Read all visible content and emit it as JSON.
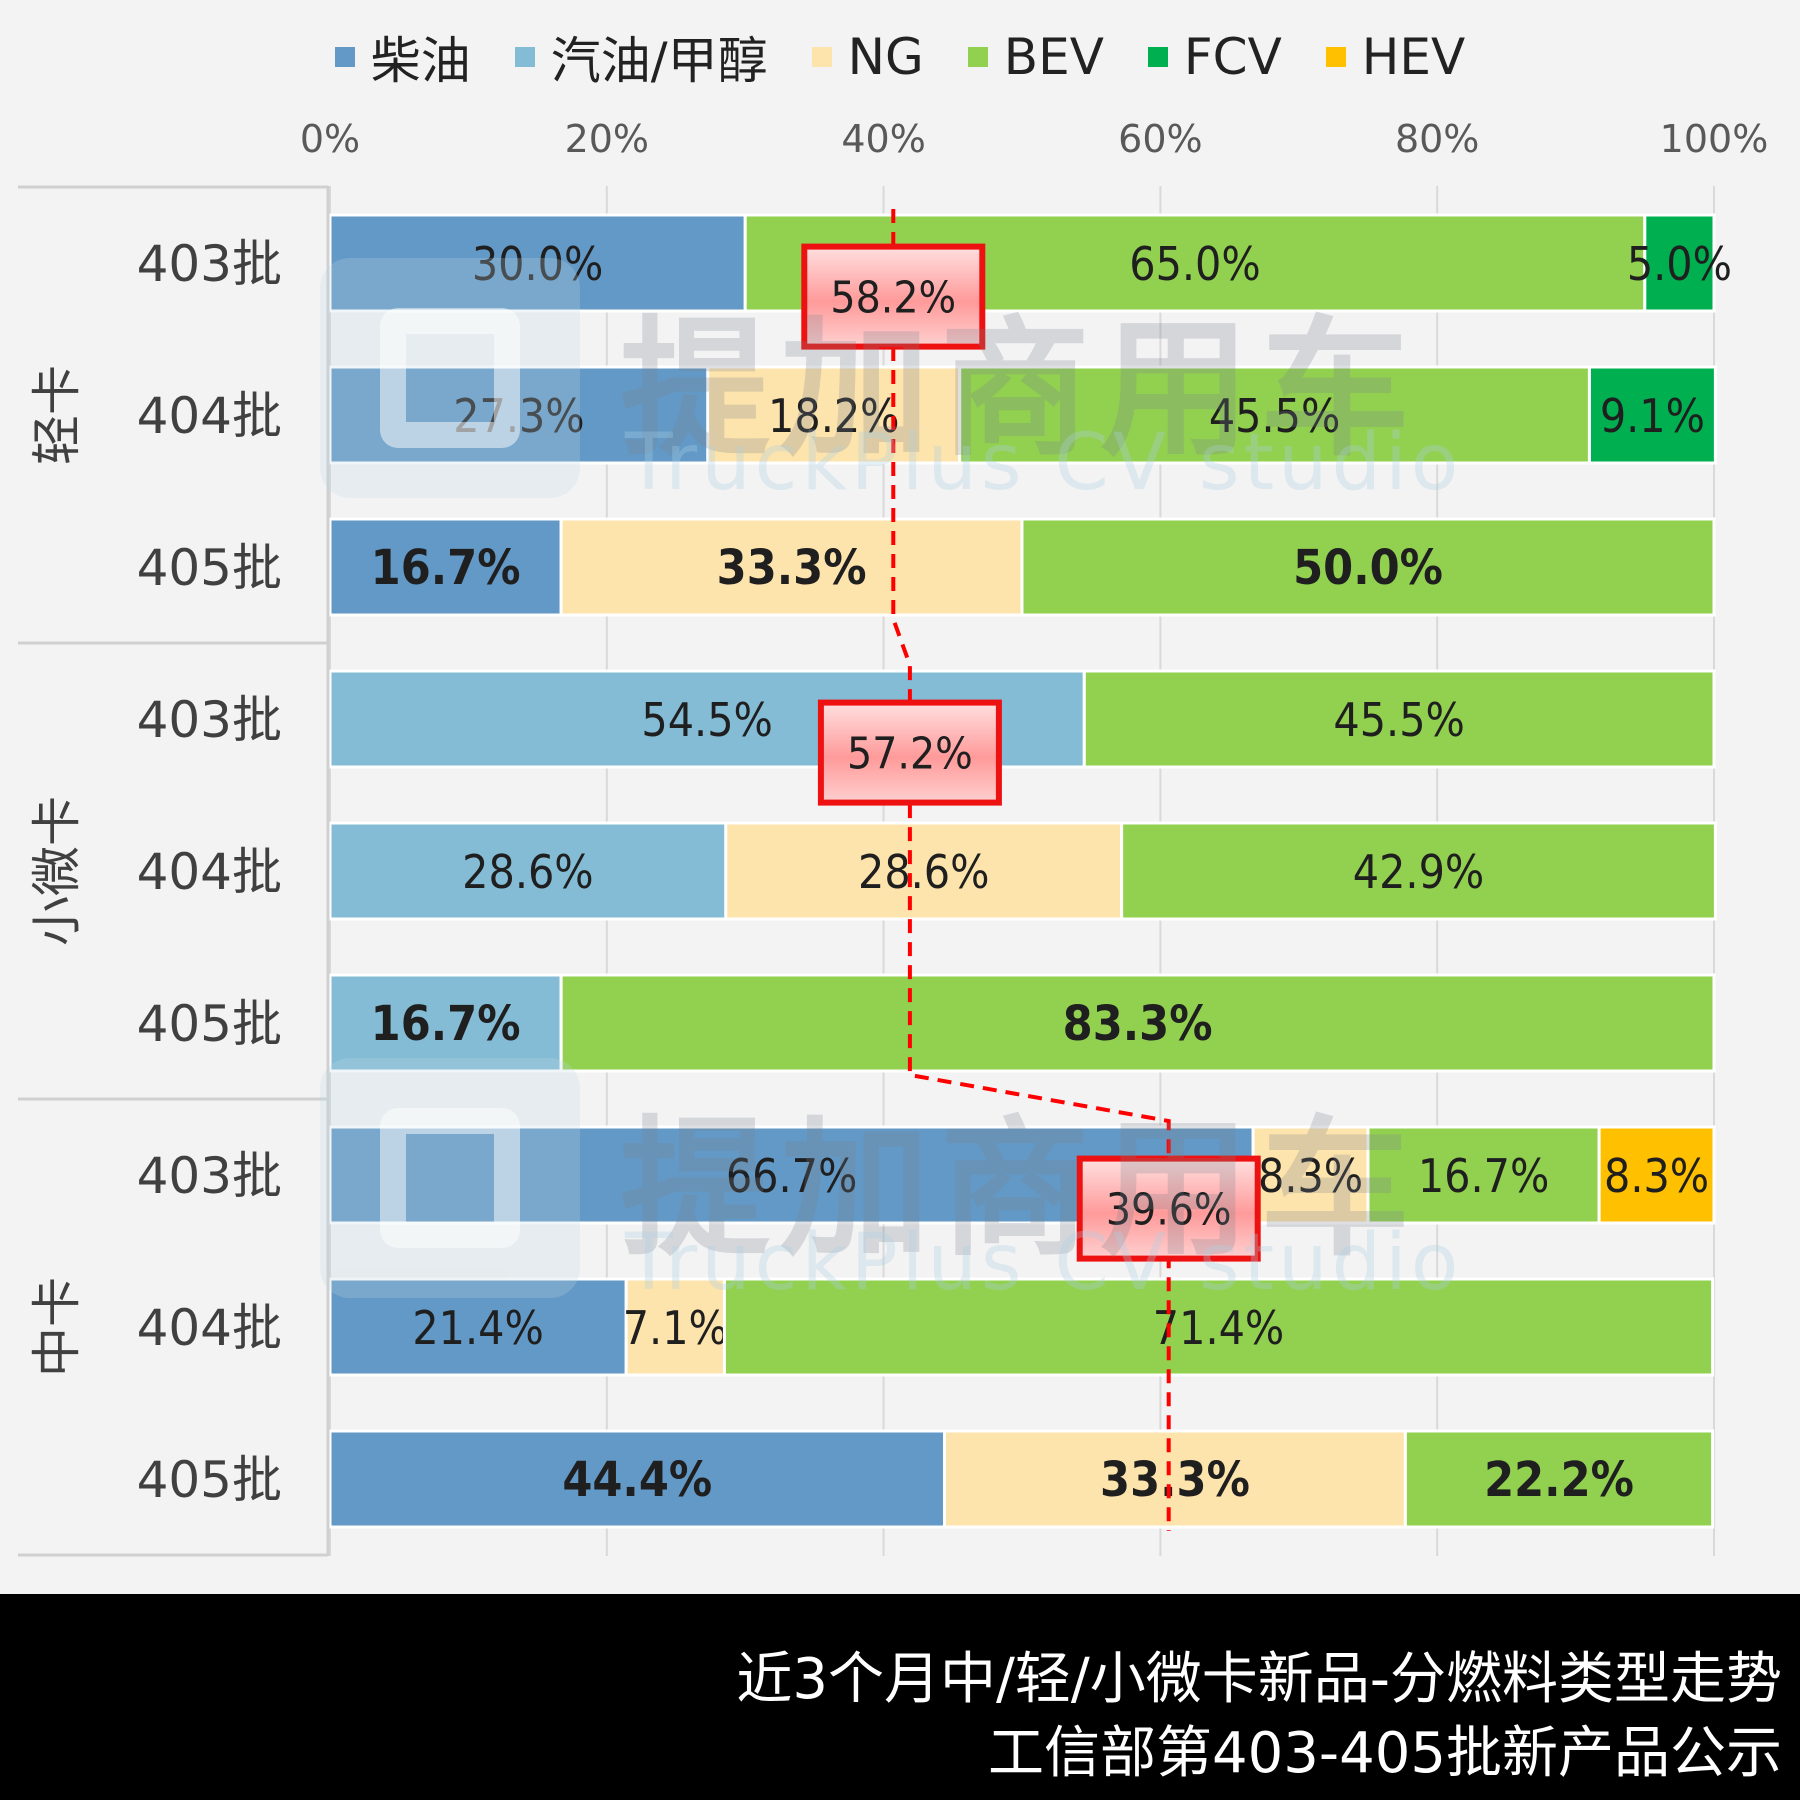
{
  "chart_data": {
    "type": "bar",
    "orientation": "horizontal-stacked-100",
    "x_ticks": [
      "0%",
      "20%",
      "40%",
      "60%",
      "80%",
      "100%"
    ],
    "xlim": [
      0,
      100
    ],
    "grid": true,
    "legend_position": "top",
    "series": [
      {
        "name": "柴油",
        "color": "#6399c6"
      },
      {
        "name": "汽油/甲醇",
        "color": "#84bcd6"
      },
      {
        "name": "NG",
        "color": "#fde3ac"
      },
      {
        "name": "BEV",
        "color": "#92d050"
      },
      {
        "name": "FCV",
        "color": "#00b050"
      },
      {
        "name": "HEV",
        "color": "#ffc000"
      }
    ],
    "groups": [
      {
        "name": "轻卡",
        "rows": [
          {
            "label": "403批",
            "bold": false,
            "segments": [
              {
                "series": "柴油",
                "value": 30.0,
                "label": "30.0%"
              },
              {
                "series": "BEV",
                "value": 65.0,
                "label": "65.0%"
              },
              {
                "series": "FCV",
                "value": 5.0,
                "label": "5.0%"
              }
            ]
          },
          {
            "label": "404批",
            "bold": false,
            "segments": [
              {
                "series": "柴油",
                "value": 27.3,
                "label": "27.3%"
              },
              {
                "series": "NG",
                "value": 18.2,
                "label": "18.2%"
              },
              {
                "series": "BEV",
                "value": 45.5,
                "label": "45.5%"
              },
              {
                "series": "FCV",
                "value": 9.1,
                "label": "9.1%"
              }
            ]
          },
          {
            "label": "405批",
            "bold": true,
            "segments": [
              {
                "series": "柴油",
                "value": 16.7,
                "label": "16.7%"
              },
              {
                "series": "NG",
                "value": 33.3,
                "label": "33.3%"
              },
              {
                "series": "BEV",
                "value": 50.0,
                "label": "50.0%"
              }
            ]
          }
        ]
      },
      {
        "name": "小微卡",
        "rows": [
          {
            "label": "403批",
            "bold": false,
            "segments": [
              {
                "series": "汽油/甲醇",
                "value": 54.5,
                "label": "54.5%"
              },
              {
                "series": "BEV",
                "value": 45.5,
                "label": "45.5%"
              }
            ]
          },
          {
            "label": "404批",
            "bold": false,
            "segments": [
              {
                "series": "汽油/甲醇",
                "value": 28.6,
                "label": "28.6%"
              },
              {
                "series": "NG",
                "value": 28.6,
                "label": "28.6%"
              },
              {
                "series": "BEV",
                "value": 42.9,
                "label": "42.9%"
              }
            ]
          },
          {
            "label": "405批",
            "bold": true,
            "segments": [
              {
                "series": "汽油/甲醇",
                "value": 16.7,
                "label": "16.7%"
              },
              {
                "series": "BEV",
                "value": 83.3,
                "label": "83.3%"
              }
            ]
          }
        ]
      },
      {
        "name": "中卡",
        "rows": [
          {
            "label": "403批",
            "bold": false,
            "segments": [
              {
                "series": "柴油",
                "value": 66.7,
                "label": "66.7%"
              },
              {
                "series": "NG",
                "value": 8.3,
                "label": "8.3%"
              },
              {
                "series": "BEV",
                "value": 16.7,
                "label": "16.7%"
              },
              {
                "series": "HEV",
                "value": 8.3,
                "label": "8.3%"
              }
            ]
          },
          {
            "label": "404批",
            "bold": false,
            "segments": [
              {
                "series": "柴油",
                "value": 21.4,
                "label": "21.4%"
              },
              {
                "series": "NG",
                "value": 7.1,
                "label": "7.1%"
              },
              {
                "series": "BEV",
                "value": 71.4,
                "label": "71.4%"
              }
            ]
          },
          {
            "label": "405批",
            "bold": true,
            "segments": [
              {
                "series": "柴油",
                "value": 44.4,
                "label": "44.4%"
              },
              {
                "series": "NG",
                "value": 33.3,
                "label": "33.3%"
              },
              {
                "series": "BEV",
                "value": 22.2,
                "label": "22.2%"
              }
            ]
          }
        ]
      }
    ],
    "annotations": [
      {
        "group": "轻卡",
        "value": 40.7,
        "label": "58.2%"
      },
      {
        "group": "小微卡",
        "value": 41.9,
        "label": "57.2%"
      },
      {
        "group": "中卡",
        "value": 60.6,
        "label": "39.6%"
      }
    ]
  },
  "watermark": {
    "cn": "提加商用车",
    "en": "TruckPlus CV studio"
  },
  "footer": {
    "line1": "近3个月中/轻/小微卡新品-分燃料类型走势",
    "line2": "工信部第403-405批新产品公示"
  }
}
